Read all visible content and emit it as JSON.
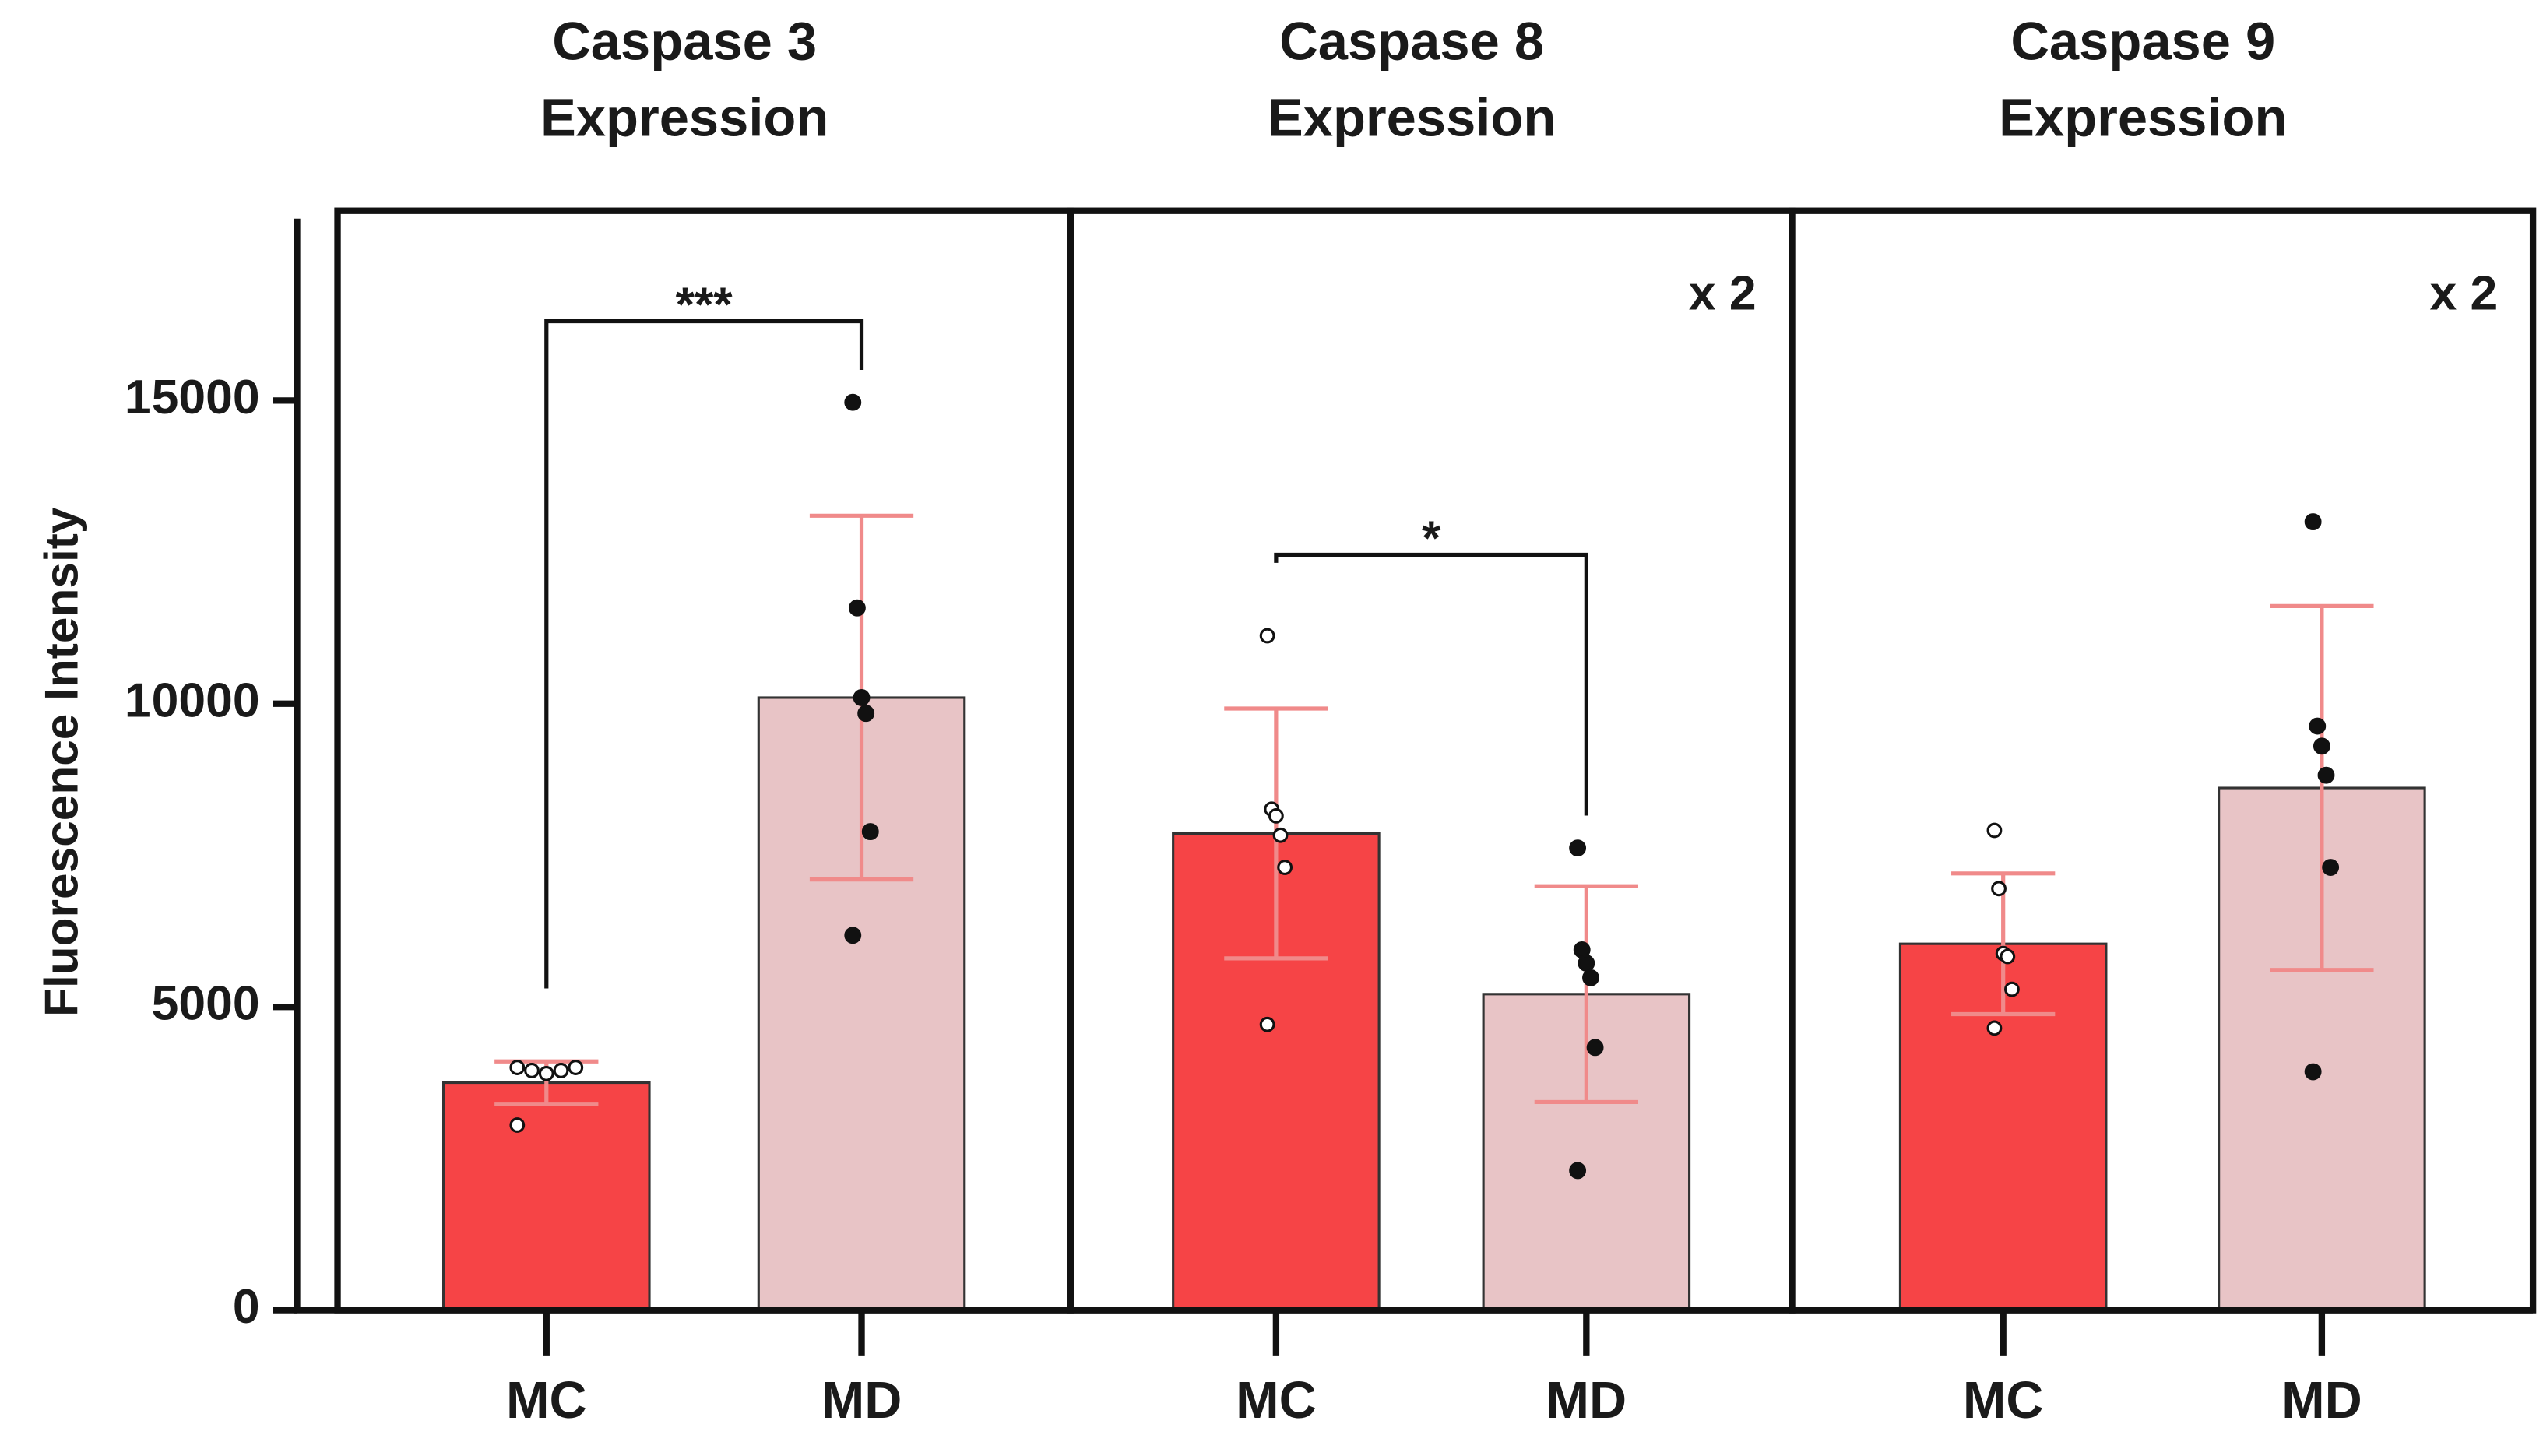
{
  "chart_data": {
    "type": "bar",
    "y_label": "Fluorescence Intensity",
    "ylim": [
      0,
      18000
    ],
    "yticks": [
      0,
      5000,
      10000,
      15000
    ],
    "categories": [
      "MC",
      "MD"
    ],
    "colors": [
      "#f64446",
      "#e8c4c6"
    ],
    "error_color": "#f08a8a",
    "panels": [
      {
        "title": [
          "Caspase 3",
          "Expression"
        ],
        "values": [
          3750,
          10100
        ],
        "errors": [
          350,
          3000
        ],
        "points": [
          [
            4000,
            3950,
            3900,
            3950,
            4000,
            3050
          ],
          [
            14970,
            11580,
            10100,
            9840,
            7890,
            6180
          ]
        ],
        "significance": "***"
      },
      {
        "title": [
          "Caspase 8",
          "Expression"
        ],
        "values": [
          7860,
          5210
        ],
        "errors": [
          2060,
          1780
        ],
        "points": [
          [
            11120,
            8260,
            8150,
            7830,
            7300,
            4710
          ],
          [
            7620,
            5940,
            5720,
            5480,
            4330,
            2300
          ]
        ],
        "significance": "*",
        "annotation": "x 2"
      },
      {
        "title": [
          "Caspase 9",
          "Expression"
        ],
        "values": [
          6040,
          8610
        ],
        "errors": [
          1160,
          3000
        ],
        "points": [
          [
            7910,
            6950,
            5880,
            5830,
            5290,
            4650
          ],
          [
            13000,
            9630,
            9300,
            8820,
            7300,
            3930
          ]
        ],
        "annotation": "x 2"
      }
    ]
  }
}
